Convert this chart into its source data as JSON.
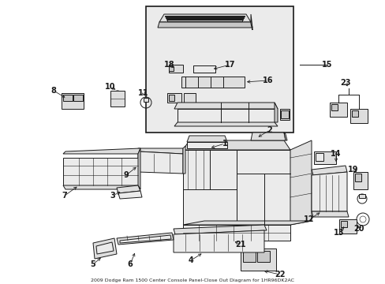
{
  "bg_color": "#ffffff",
  "line_color": "#1a1a1a",
  "title": "2009 Dodge Ram 1500 Center Console Panel-Close Out Diagram for 1HR96DK2AC",
  "fig_width": 4.89,
  "fig_height": 3.6,
  "dpi": 100
}
